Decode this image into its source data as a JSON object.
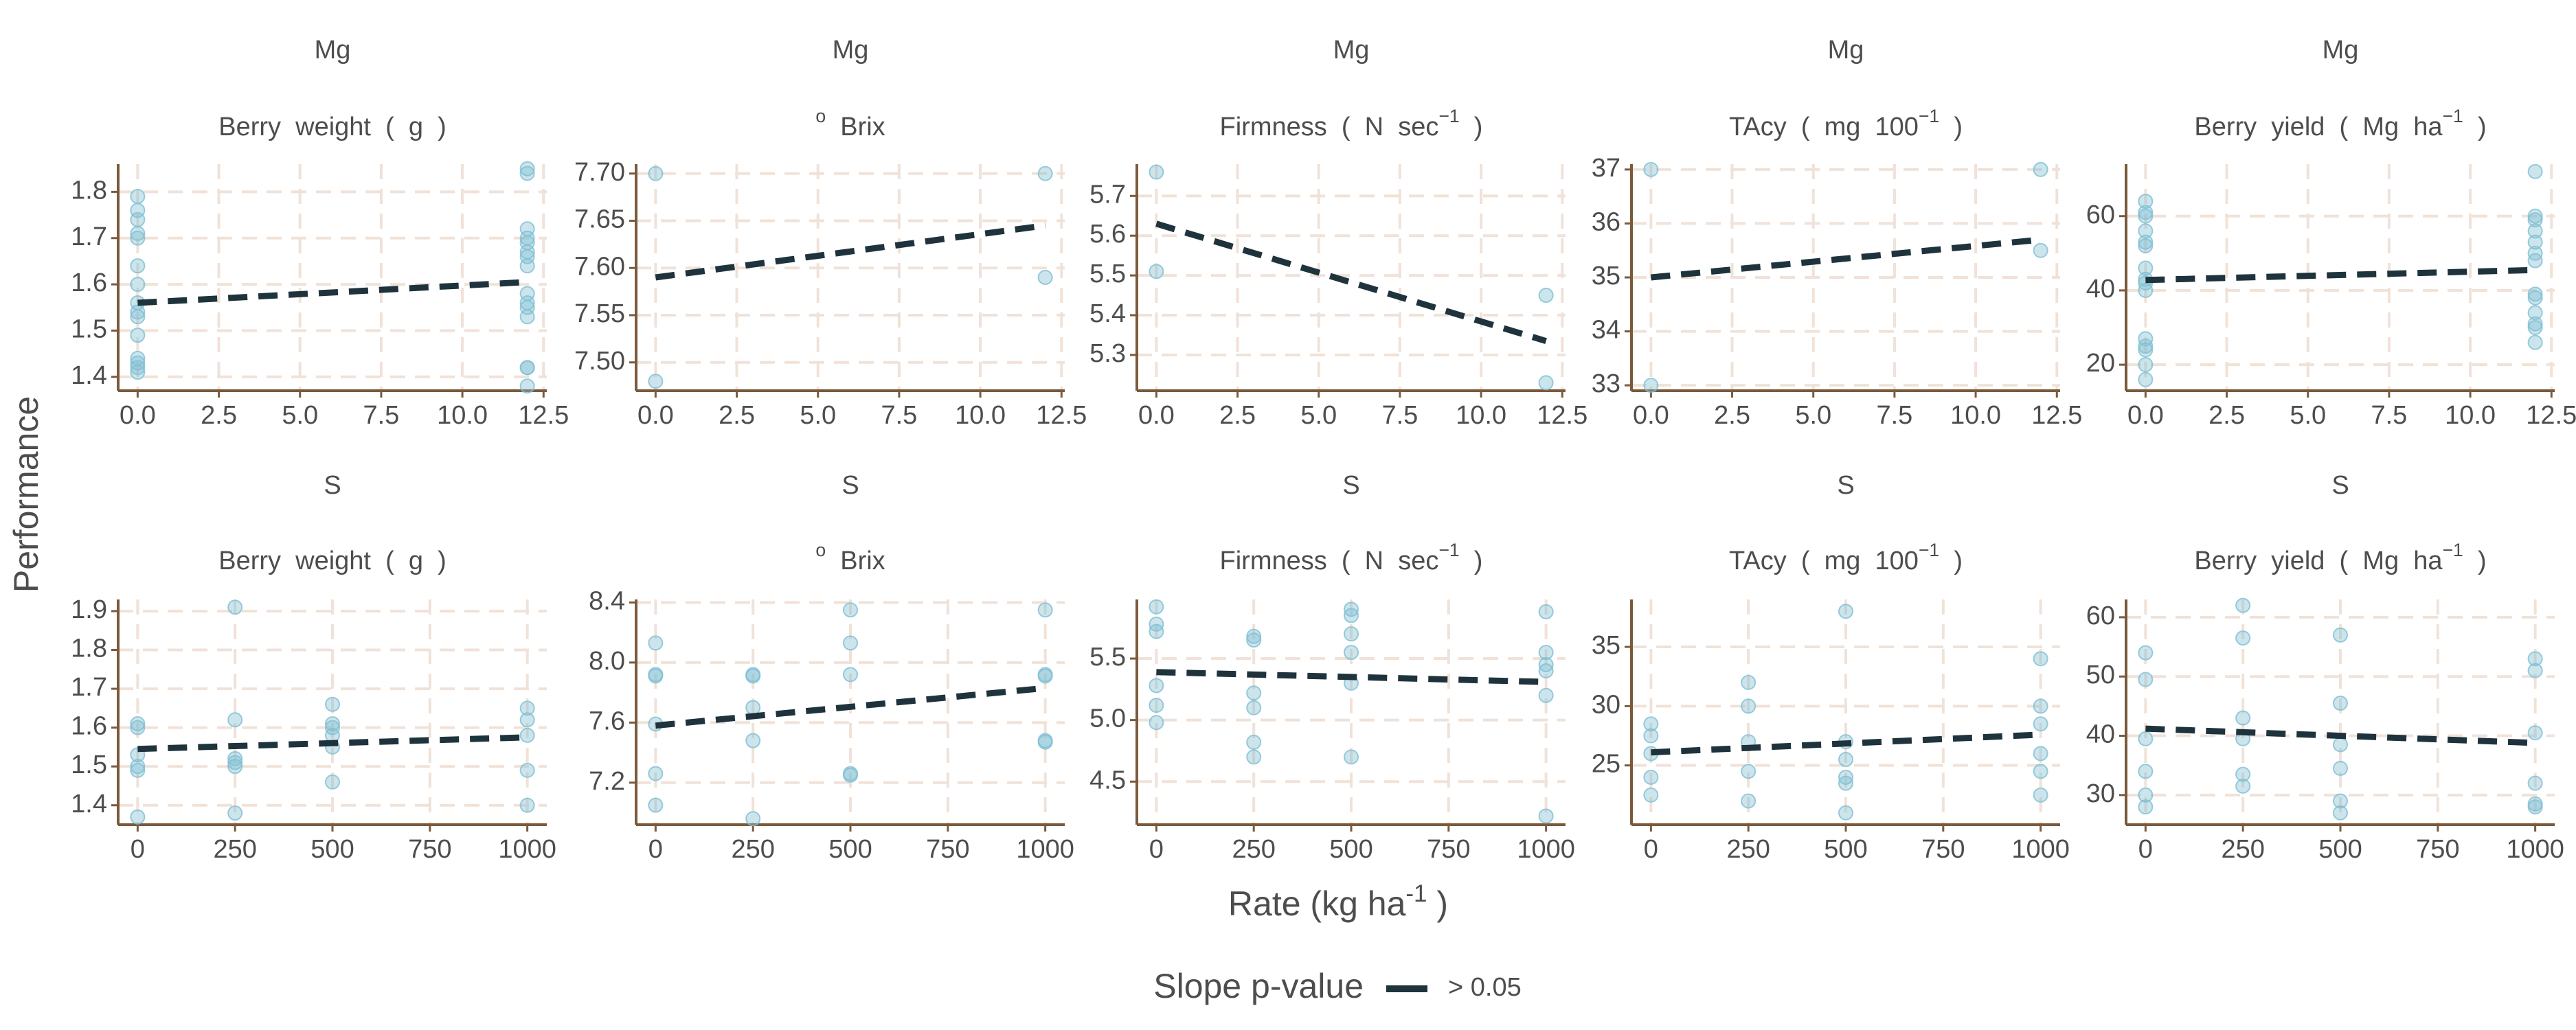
{
  "ylabel": "Performance",
  "xlabel": [
    {
      "text": "Rate (kg ha"
    },
    {
      "sup": "-1"
    },
    {
      "text": " )"
    }
  ],
  "legend": {
    "title": "Slope p-value",
    "entries": [
      {
        "label": "> 0.05",
        "color": "#1f333d"
      }
    ]
  },
  "chart_data": [
    {
      "type": "scatter",
      "title": "Mg",
      "subtitle": [
        {
          "text": "Berry  weight  (  g  )"
        }
      ],
      "color": "#7fbfd3",
      "x": [
        0,
        0,
        0,
        0,
        0,
        0,
        0,
        0,
        0,
        0,
        0,
        0,
        0,
        0,
        0,
        12,
        12,
        12,
        12,
        12,
        12,
        12,
        12,
        12,
        12,
        12,
        12,
        12,
        12,
        12
      ],
      "values": [
        1.79,
        1.76,
        1.74,
        1.71,
        1.7,
        1.64,
        1.6,
        1.56,
        1.54,
        1.53,
        1.49,
        1.44,
        1.43,
        1.42,
        1.41,
        1.85,
        1.84,
        1.72,
        1.7,
        1.69,
        1.67,
        1.66,
        1.64,
        1.58,
        1.56,
        1.55,
        1.53,
        1.42,
        1.42,
        1.38
      ],
      "fit": {
        "x": [
          0,
          12
        ],
        "values": [
          1.56,
          1.605
        ]
      },
      "xlim": [
        -0.6,
        12.6
      ],
      "xticks": [
        {
          "value": 0,
          "label": "0.0"
        },
        2.5,
        {
          "value": 5,
          "label": "5.0"
        },
        7.5,
        {
          "value": 10,
          "label": "10.0"
        },
        12.5
      ],
      "ylim": [
        1.37,
        1.86
      ],
      "yticks": [
        1.4,
        1.5,
        1.6,
        1.7,
        1.8
      ]
    },
    {
      "type": "scatter",
      "title": "Mg",
      "subtitle": [
        {
          "sup": "o"
        },
        {
          "text": "  Brix"
        }
      ],
      "color": "#7fbfd3",
      "x": [
        0,
        0,
        12,
        12
      ],
      "values": [
        7.7,
        7.48,
        7.7,
        7.59
      ],
      "fit": {
        "x": [
          0,
          12
        ],
        "values": [
          7.59,
          7.645
        ]
      },
      "xlim": [
        -0.6,
        12.6
      ],
      "xticks": [
        {
          "value": 0,
          "label": "0.0"
        },
        2.5,
        {
          "value": 5,
          "label": "5.0"
        },
        7.5,
        {
          "value": 10,
          "label": "10.0"
        },
        12.5
      ],
      "ylim": [
        7.47,
        7.71
      ],
      "yticks": [
        {
          "value": 7.5,
          "label": "7.50"
        },
        7.55,
        {
          "value": 7.6,
          "label": "7.60"
        },
        7.65,
        {
          "value": 7.7,
          "label": "7.70"
        }
      ]
    },
    {
      "type": "scatter",
      "title": "Mg",
      "subtitle": [
        {
          "text": "Firmness  (  N  sec"
        },
        {
          "sup": "−1"
        },
        {
          "text": "  )"
        }
      ],
      "color": "#7fbfd3",
      "x": [
        0,
        0,
        12,
        12
      ],
      "values": [
        5.76,
        5.51,
        5.45,
        5.23
      ],
      "fit": {
        "x": [
          0,
          12
        ],
        "values": [
          5.63,
          5.335
        ]
      },
      "xlim": [
        -0.6,
        12.6
      ],
      "xticks": [
        {
          "value": 0,
          "label": "0.0"
        },
        2.5,
        {
          "value": 5,
          "label": "5.0"
        },
        7.5,
        {
          "value": 10,
          "label": "10.0"
        },
        12.5
      ],
      "ylim": [
        5.21,
        5.78
      ],
      "yticks": [
        5.3,
        5.4,
        5.5,
        5.6,
        5.7
      ]
    },
    {
      "type": "scatter",
      "title": "Mg",
      "subtitle": [
        {
          "text": "TAcy  (  mg  100"
        },
        {
          "sup": "−1"
        },
        {
          "text": "  )"
        }
      ],
      "color": "#7fbfd3",
      "x": [
        0,
        0,
        12,
        12
      ],
      "values": [
        37.0,
        33.0,
        37.0,
        35.5
      ],
      "fit": {
        "x": [
          0,
          12
        ],
        "values": [
          35.0,
          35.7
        ]
      },
      "xlim": [
        -0.6,
        12.6
      ],
      "xticks": [
        {
          "value": 0,
          "label": "0.0"
        },
        2.5,
        {
          "value": 5,
          "label": "5.0"
        },
        7.5,
        {
          "value": 10,
          "label": "10.0"
        },
        12.5
      ],
      "ylim": [
        32.9,
        37.1
      ],
      "yticks": [
        33,
        34,
        35,
        36,
        37
      ]
    },
    {
      "type": "scatter",
      "title": "Mg",
      "subtitle": [
        {
          "text": "Berry  yield  (  Mg  ha"
        },
        {
          "sup": "−1"
        },
        {
          "text": "  )"
        }
      ],
      "color": "#7fbfd3",
      "x": [
        0,
        0,
        0,
        0,
        0,
        0,
        0,
        0,
        0,
        0,
        0,
        0,
        0,
        0,
        0,
        12,
        12,
        12,
        12,
        12,
        12,
        12,
        12,
        12,
        12,
        12,
        12,
        12
      ],
      "values": [
        64,
        61,
        60,
        56,
        53,
        52,
        46,
        43,
        42,
        40,
        27,
        25,
        24,
        20,
        16,
        72,
        60,
        59,
        56,
        53,
        50,
        48,
        39,
        38,
        34,
        31,
        30,
        26
      ],
      "fit": {
        "x": [
          0,
          12
        ],
        "values": [
          42.8,
          45.5
        ]
      },
      "xlim": [
        -0.6,
        12.6
      ],
      "xticks": [
        {
          "value": 0,
          "label": "0.0"
        },
        2.5,
        {
          "value": 5,
          "label": "5.0"
        },
        7.5,
        {
          "value": 10,
          "label": "10.0"
        },
        12.5
      ],
      "ylim": [
        13,
        74
      ],
      "yticks": [
        20,
        40,
        60
      ]
    },
    {
      "type": "scatter",
      "title": "S",
      "subtitle": [
        {
          "text": "Berry  weight  (  g  )"
        }
      ],
      "color": "#7fbfd3",
      "x": [
        0,
        0,
        0,
        0,
        0,
        0,
        250,
        250,
        250,
        250,
        250,
        250,
        500,
        500,
        500,
        500,
        500,
        500,
        1000,
        1000,
        1000,
        1000,
        1000
      ],
      "values": [
        1.61,
        1.6,
        1.53,
        1.5,
        1.49,
        1.37,
        1.91,
        1.62,
        1.52,
        1.51,
        1.5,
        1.38,
        1.66,
        1.61,
        1.6,
        1.58,
        1.55,
        1.46,
        1.65,
        1.62,
        1.58,
        1.49,
        1.4
      ],
      "fit": {
        "x": [
          0,
          1000
        ],
        "values": [
          1.545,
          1.575
        ]
      },
      "xlim": [
        -50,
        1050
      ],
      "xticks": [
        0,
        250,
        500,
        750,
        1000
      ],
      "ylim": [
        1.35,
        1.93
      ],
      "yticks": [
        1.4,
        1.5,
        1.6,
        1.7,
        1.8,
        1.9
      ]
    },
    {
      "type": "scatter",
      "title": "S",
      "subtitle": [
        {
          "sup": "o"
        },
        {
          "text": "  Brix"
        }
      ],
      "color": "#7fbfd3",
      "x": [
        0,
        0,
        0,
        0,
        0,
        0,
        250,
        250,
        250,
        250,
        250,
        500,
        500,
        500,
        500,
        500,
        1000,
        1000,
        1000,
        1000,
        1000
      ],
      "values": [
        8.13,
        7.92,
        7.91,
        7.59,
        7.26,
        7.05,
        7.92,
        7.91,
        7.7,
        7.48,
        6.96,
        8.35,
        8.13,
        7.92,
        7.26,
        7.25,
        8.35,
        7.92,
        7.91,
        7.48,
        7.47
      ],
      "fit": {
        "x": [
          0,
          1000
        ],
        "values": [
          7.58,
          7.83
        ]
      },
      "xlim": [
        -50,
        1050
      ],
      "xticks": [
        0,
        250,
        500,
        750,
        1000
      ],
      "ylim": [
        6.92,
        8.42
      ],
      "yticks": [
        7.2,
        7.6,
        {
          "value": 8,
          "label": "8.0"
        },
        8.4
      ]
    },
    {
      "type": "scatter",
      "title": "S",
      "subtitle": [
        {
          "text": "Firmness  (  N  sec"
        },
        {
          "sup": "−1"
        },
        {
          "text": "  )"
        }
      ],
      "color": "#7fbfd3",
      "x": [
        0,
        0,
        0,
        0,
        0,
        0,
        250,
        250,
        250,
        250,
        250,
        250,
        500,
        500,
        500,
        500,
        500,
        500,
        1000,
        1000,
        1000,
        1000,
        1000,
        1000
      ],
      "values": [
        5.92,
        5.78,
        5.72,
        5.28,
        5.12,
        4.98,
        5.68,
        5.65,
        5.22,
        5.1,
        4.82,
        4.7,
        5.9,
        5.85,
        5.7,
        5.55,
        5.3,
        4.7,
        5.88,
        5.55,
        5.45,
        5.4,
        5.2,
        4.22
      ],
      "fit": {
        "x": [
          0,
          1000
        ],
        "values": [
          5.39,
          5.31
        ]
      },
      "xlim": [
        -50,
        1050
      ],
      "xticks": [
        0,
        250,
        500,
        750,
        1000
      ],
      "ylim": [
        4.15,
        5.98
      ],
      "yticks": [
        4.5,
        {
          "value": 5,
          "label": "5.0"
        },
        5.5
      ]
    },
    {
      "type": "scatter",
      "title": "S",
      "subtitle": [
        {
          "text": "TAcy  (  mg  100"
        },
        {
          "sup": "−1"
        },
        {
          "text": "  )"
        }
      ],
      "color": "#7fbfd3",
      "x": [
        0,
        0,
        0,
        0,
        0,
        250,
        250,
        250,
        250,
        250,
        500,
        500,
        500,
        500,
        500,
        500,
        1000,
        1000,
        1000,
        1000,
        1000,
        1000
      ],
      "values": [
        28.5,
        27.5,
        26,
        24,
        22.5,
        32,
        30,
        27,
        24.5,
        22,
        38,
        27,
        25.5,
        24,
        23.5,
        21,
        34,
        30,
        28.5,
        26,
        24.5,
        22.5
      ],
      "fit": {
        "x": [
          0,
          1000
        ],
        "values": [
          26.1,
          27.6
        ]
      },
      "xlim": [
        -50,
        1050
      ],
      "xticks": [
        0,
        250,
        500,
        750,
        1000
      ],
      "ylim": [
        20,
        39
      ],
      "yticks": [
        25,
        30,
        35
      ]
    },
    {
      "type": "scatter",
      "title": "S",
      "subtitle": [
        {
          "text": "Berry  yield  (  Mg  ha"
        },
        {
          "sup": "−1"
        },
        {
          "text": "  )"
        }
      ],
      "color": "#7fbfd3",
      "x": [
        0,
        0,
        0,
        0,
        0,
        0,
        250,
        250,
        250,
        250,
        250,
        250,
        500,
        500,
        500,
        500,
        500,
        500,
        1000,
        1000,
        1000,
        1000,
        1000,
        1000
      ],
      "values": [
        54,
        49.5,
        39.5,
        34,
        30,
        28,
        62,
        56.5,
        43,
        39.5,
        33.5,
        31.5,
        57,
        45.5,
        38.5,
        34.5,
        29,
        27,
        53,
        51,
        40.5,
        32,
        28.5,
        28
      ],
      "fit": {
        "x": [
          0,
          1000
        ],
        "values": [
          41.2,
          38.8
        ]
      },
      "xlim": [
        -50,
        1050
      ],
      "xticks": [
        0,
        250,
        500,
        750,
        1000
      ],
      "ylim": [
        25,
        63
      ],
      "yticks": [
        30,
        40,
        50,
        60
      ]
    }
  ]
}
